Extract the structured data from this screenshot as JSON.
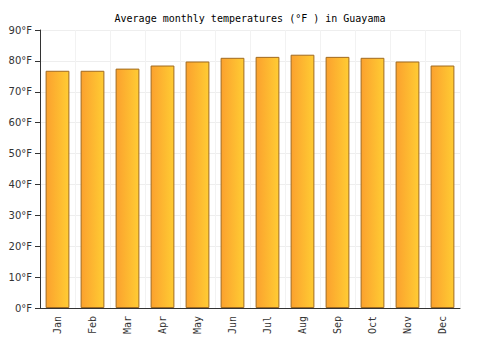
{
  "chart_data": {
    "type": "bar",
    "title": "Average monthly temperatures (°F ) in Guayama",
    "categories": [
      "Jan",
      "Feb",
      "Mar",
      "Apr",
      "May",
      "Jun",
      "Jul",
      "Aug",
      "Sep",
      "Oct",
      "Nov",
      "Dec"
    ],
    "values": [
      76.8,
      76.8,
      77.5,
      78.5,
      79.8,
      81,
      81.3,
      82,
      81.3,
      81,
      79.8,
      78.5
    ],
    "color": "#fba12e",
    "ylim": [
      0,
      90
    ],
    "yticks": [
      {
        "value": 0,
        "label": "0°F"
      },
      {
        "value": 10,
        "label": "10°F"
      },
      {
        "value": 20,
        "label": "20°F"
      },
      {
        "value": 30,
        "label": "30°F"
      },
      {
        "value": 40,
        "label": "40°F"
      },
      {
        "value": 50,
        "label": "50°F"
      },
      {
        "value": 60,
        "label": "60°F"
      },
      {
        "value": 70,
        "label": "70°F"
      },
      {
        "value": 80,
        "label": "80°F"
      },
      {
        "value": 90,
        "label": "90°F"
      }
    ],
    "grid": true
  }
}
